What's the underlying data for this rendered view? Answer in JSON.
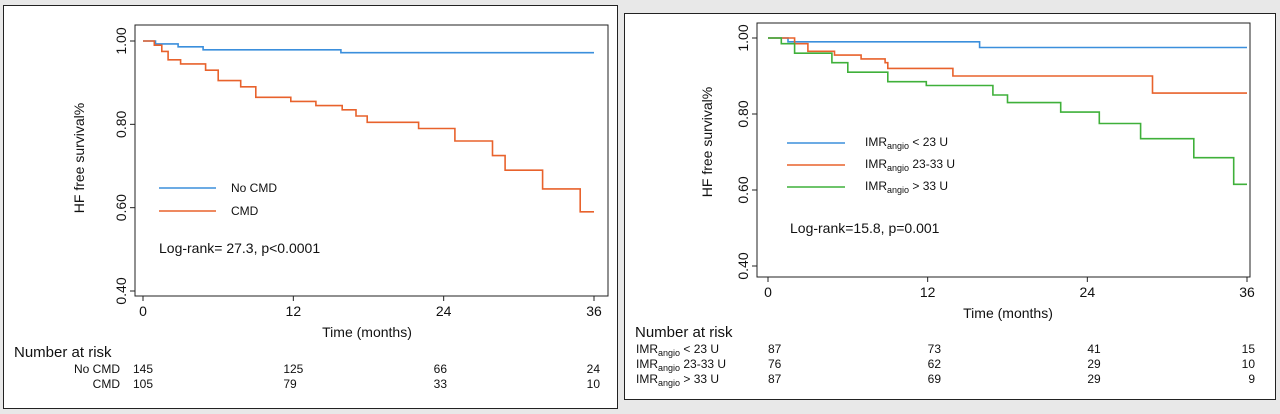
{
  "chart_data": [
    {
      "type": "line",
      "step": true,
      "ylabel": "HF free survival%",
      "xlabel": "Time (months)",
      "xlim": [
        0,
        36
      ],
      "ylim": [
        0.4,
        1.0
      ],
      "xticks": [
        "0",
        "12",
        "24",
        "36"
      ],
      "yticks": [
        "0.40",
        "0.60",
        "0.80",
        "1.00"
      ],
      "grid": false,
      "legend_position": "center-left",
      "annotation": "Log-rank= 27.3, p<0.0001",
      "series": [
        {
          "name": "No CMD",
          "color": "#3b8fdc",
          "points": [
            [
              0,
              1.0
            ],
            [
              1.0,
              1.0
            ],
            [
              1.0,
              0.993
            ],
            [
              2.8,
              0.993
            ],
            [
              2.8,
              0.986
            ],
            [
              4.8,
              0.986
            ],
            [
              4.8,
              0.979
            ],
            [
              15.8,
              0.979
            ],
            [
              15.8,
              0.972
            ],
            [
              36,
              0.972
            ]
          ]
        },
        {
          "name": "CMD",
          "color": "#e8622c",
          "points": [
            [
              0,
              1.0
            ],
            [
              0.9,
              1.0
            ],
            [
              0.9,
              0.99
            ],
            [
              1.5,
              0.99
            ],
            [
              1.5,
              0.975
            ],
            [
              2.0,
              0.975
            ],
            [
              2.0,
              0.955
            ],
            [
              3.0,
              0.955
            ],
            [
              3.0,
              0.945
            ],
            [
              5.0,
              0.945
            ],
            [
              5.0,
              0.93
            ],
            [
              6.0,
              0.93
            ],
            [
              6.0,
              0.905
            ],
            [
              7.8,
              0.905
            ],
            [
              7.8,
              0.89
            ],
            [
              9.0,
              0.89
            ],
            [
              9.0,
              0.865
            ],
            [
              11.8,
              0.865
            ],
            [
              11.8,
              0.855
            ],
            [
              13.8,
              0.855
            ],
            [
              13.8,
              0.845
            ],
            [
              15.9,
              0.845
            ],
            [
              15.9,
              0.835
            ],
            [
              17.0,
              0.835
            ],
            [
              17.0,
              0.82
            ],
            [
              17.9,
              0.82
            ],
            [
              17.9,
              0.805
            ],
            [
              22.0,
              0.805
            ],
            [
              22.0,
              0.79
            ],
            [
              24.9,
              0.79
            ],
            [
              24.9,
              0.76
            ],
            [
              27.9,
              0.76
            ],
            [
              27.9,
              0.725
            ],
            [
              28.9,
              0.725
            ],
            [
              28.9,
              0.69
            ],
            [
              31.9,
              0.69
            ],
            [
              31.9,
              0.645
            ],
            [
              34.9,
              0.645
            ],
            [
              34.9,
              0.59
            ],
            [
              36,
              0.59
            ]
          ]
        }
      ],
      "risk_table": {
        "title": "Number at risk",
        "rows": [
          {
            "label": "No CMD",
            "values": [
              "145",
              "125",
              "66",
              "24"
            ]
          },
          {
            "label": "CMD",
            "values": [
              "105",
              "79",
              "33",
              "10"
            ]
          }
        ]
      }
    },
    {
      "type": "line",
      "step": true,
      "ylabel": "HF free survival%",
      "xlabel": "Time (months)",
      "xlim": [
        0,
        36
      ],
      "ylim": [
        0.4,
        1.0
      ],
      "xticks": [
        "0",
        "12",
        "24",
        "36"
      ],
      "yticks": [
        "0.40",
        "0.60",
        "0.80",
        "1.00"
      ],
      "grid": false,
      "legend_position": "center-left",
      "annotation": "Log-rank=15.8, p=0.001",
      "series": [
        {
          "name_main": "IMR",
          "name_sub": "angio",
          "name_rest": " < 23 U",
          "color": "#3b8fdc",
          "points": [
            [
              0,
              1.0
            ],
            [
              1.5,
              1.0
            ],
            [
              1.5,
              0.99
            ],
            [
              15.9,
              0.99
            ],
            [
              15.9,
              0.975
            ],
            [
              36,
              0.975
            ]
          ]
        },
        {
          "name_main": "IMR",
          "name_sub": "angio",
          "name_rest": " 23-33 U",
          "color": "#e8622c",
          "points": [
            [
              0,
              1.0
            ],
            [
              2.0,
              1.0
            ],
            [
              2.0,
              0.985
            ],
            [
              3.0,
              0.985
            ],
            [
              3.0,
              0.965
            ],
            [
              5.0,
              0.965
            ],
            [
              5.0,
              0.955
            ],
            [
              7.0,
              0.955
            ],
            [
              7.0,
              0.945
            ],
            [
              8.8,
              0.945
            ],
            [
              8.8,
              0.935
            ],
            [
              9.0,
              0.935
            ],
            [
              9.0,
              0.92
            ],
            [
              13.9,
              0.92
            ],
            [
              13.9,
              0.9
            ],
            [
              28.9,
              0.9
            ],
            [
              28.9,
              0.855
            ],
            [
              36,
              0.855
            ]
          ]
        },
        {
          "name_main": "IMR",
          "name_sub": "angio",
          "name_rest": " > 33 U",
          "color": "#3fb03a",
          "points": [
            [
              0,
              1.0
            ],
            [
              1.0,
              1.0
            ],
            [
              1.0,
              0.985
            ],
            [
              2.0,
              0.985
            ],
            [
              2.0,
              0.96
            ],
            [
              4.8,
              0.96
            ],
            [
              4.8,
              0.935
            ],
            [
              6.0,
              0.935
            ],
            [
              6.0,
              0.91
            ],
            [
              9.0,
              0.91
            ],
            [
              9.0,
              0.885
            ],
            [
              11.9,
              0.885
            ],
            [
              11.9,
              0.875
            ],
            [
              16.9,
              0.875
            ],
            [
              16.9,
              0.85
            ],
            [
              18.0,
              0.85
            ],
            [
              18.0,
              0.83
            ],
            [
              22.0,
              0.83
            ],
            [
              22.0,
              0.805
            ],
            [
              24.9,
              0.805
            ],
            [
              24.9,
              0.775
            ],
            [
              28.0,
              0.775
            ],
            [
              28.0,
              0.735
            ],
            [
              32.0,
              0.735
            ],
            [
              32.0,
              0.685
            ],
            [
              35.0,
              0.685
            ],
            [
              35.0,
              0.615
            ],
            [
              36,
              0.615
            ]
          ]
        }
      ],
      "risk_table": {
        "title": "Number at risk",
        "rows": [
          {
            "label_main": "IMR",
            "label_sub": "angio",
            "label_rest": " < 23 U",
            "values": [
              "87",
              "73",
              "41",
              "15"
            ]
          },
          {
            "label_main": "IMR",
            "label_sub": "angio",
            "label_rest": " 23-33 U",
            "values": [
              "76",
              "62",
              "29",
              "10"
            ]
          },
          {
            "label_main": "IMR",
            "label_sub": "angio",
            "label_rest": " > 33 U",
            "values": [
              "87",
              "69",
              "29",
              "9"
            ]
          }
        ]
      }
    }
  ]
}
